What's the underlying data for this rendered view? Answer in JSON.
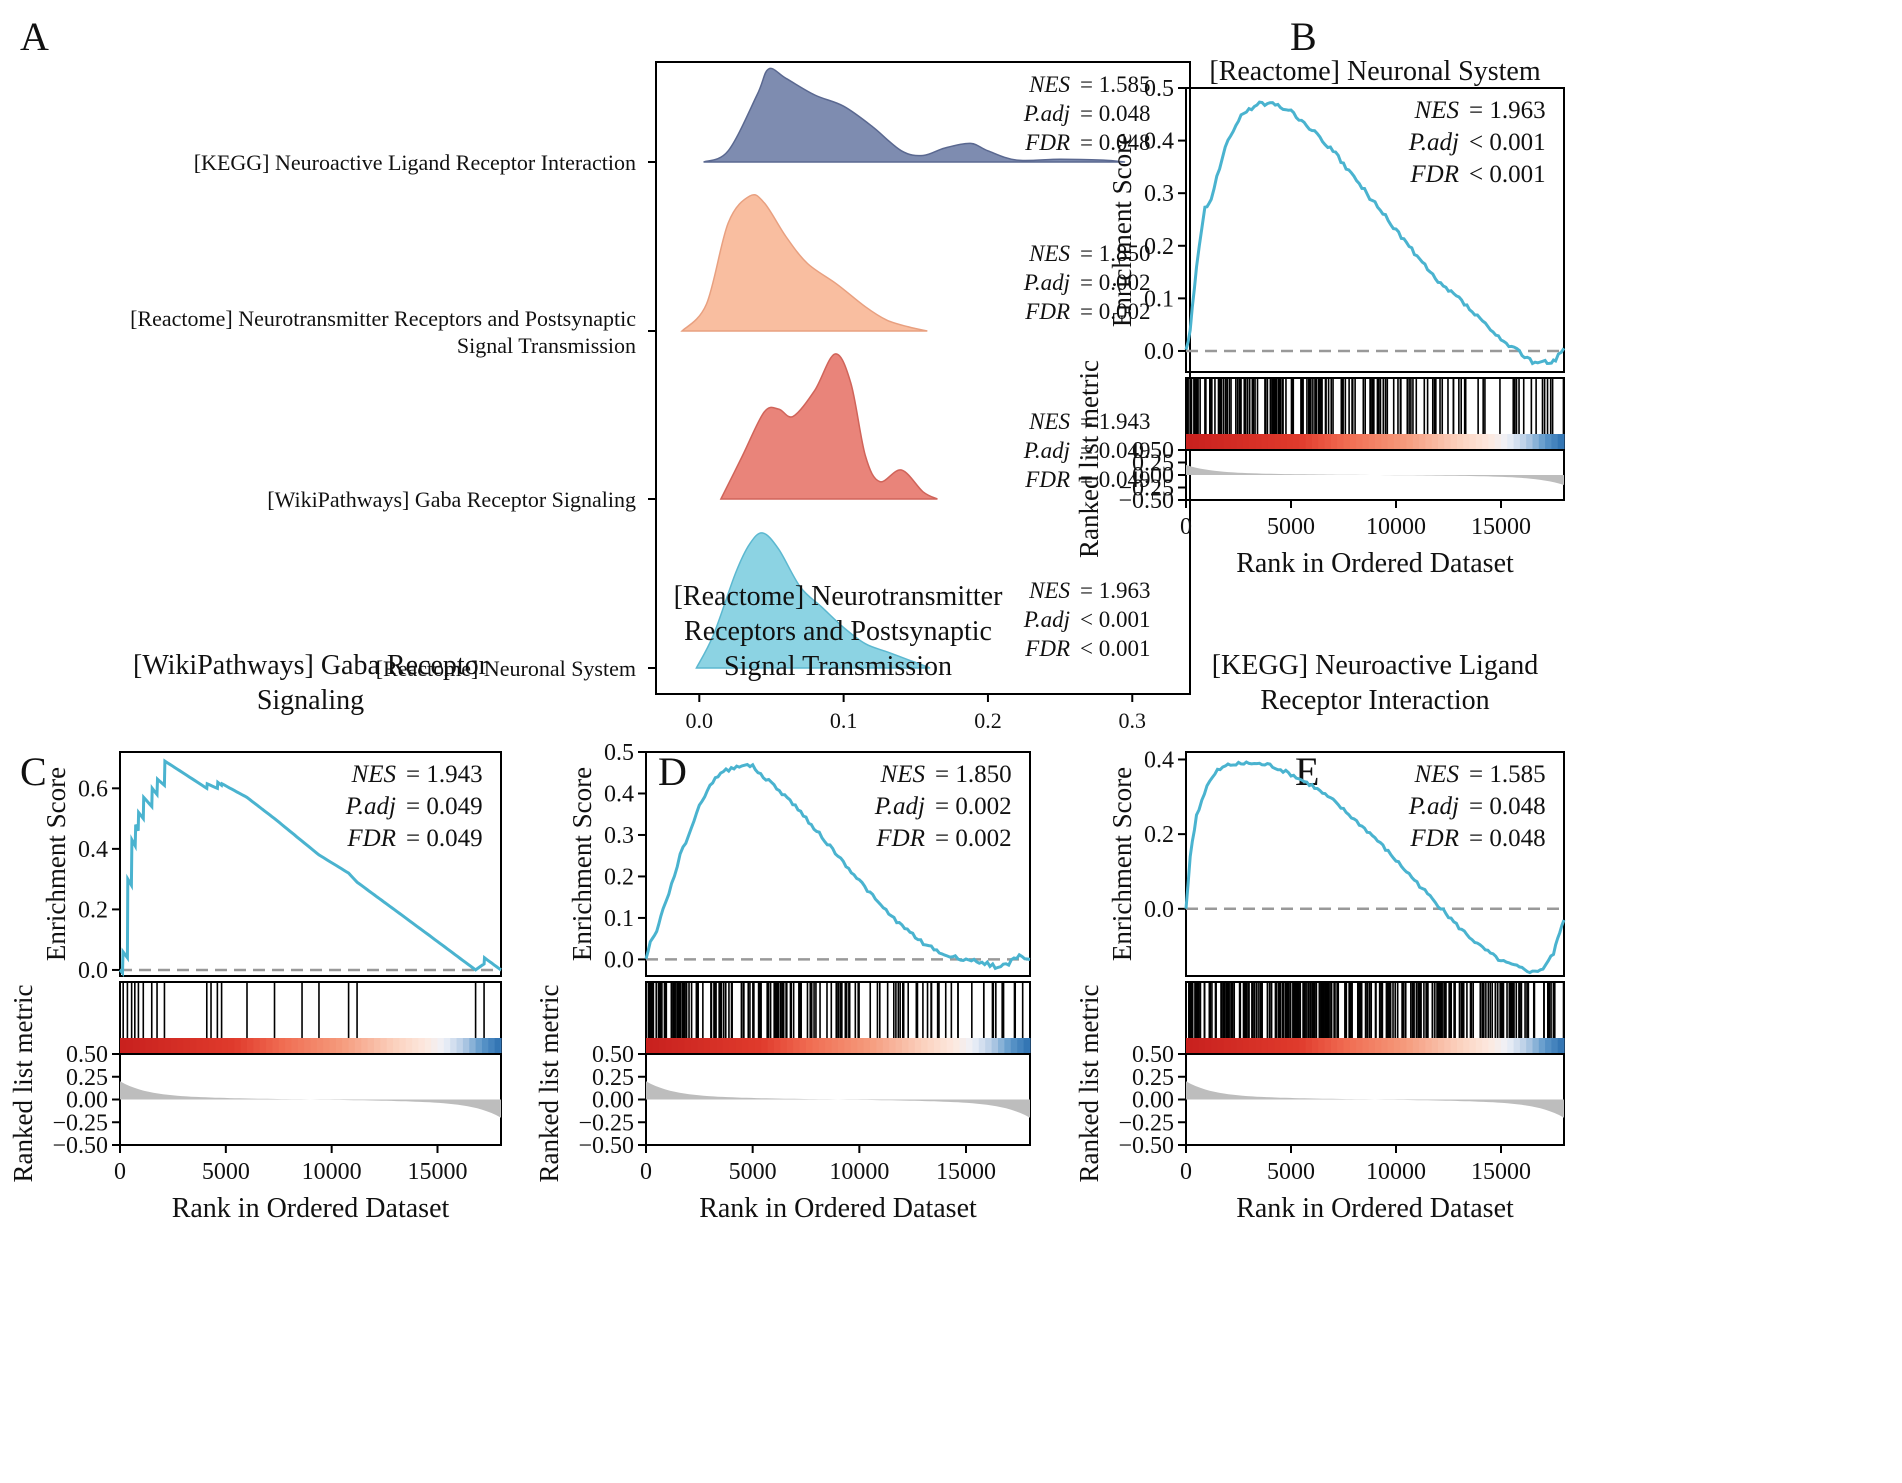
{
  "labels": {
    "A": "A",
    "B": "B",
    "C": "C",
    "D": "D",
    "E": "E"
  },
  "colors": {
    "curve": "#4ab3cf",
    "baseline": "#999999",
    "metric": "#bdbdbd",
    "ridge": [
      "#7e8cb0",
      "#f9bea0",
      "#e9847a",
      "#8cd3e3"
    ],
    "ridge_edge": [
      "#5a6890",
      "#e8a080",
      "#d0645a",
      "#5cb8d0"
    ]
  },
  "chart_data": [
    {
      "panel": "A",
      "type": "ridgeline",
      "x_ticks": [
        "0.0",
        "0.1",
        "0.2",
        "0.3"
      ],
      "xlim": [
        -0.03,
        0.34
      ],
      "x_grid": [
        0,
        0.1,
        0.2,
        0.3,
        0.35,
        0.4,
        0.45,
        0.5,
        0.55,
        0.6,
        0.65,
        0.7,
        0.75,
        0.8,
        0.85,
        0.9,
        0.95,
        1
      ],
      "ridges": [
        {
          "name": "[KEGG] Neuroactive Ligand Receptor Interaction",
          "label_lines": [
            "[KEGG] Neuroactive Ligand Receptor Interaction"
          ],
          "x": [
            0.003,
            0.02,
            0.04,
            0.048,
            0.06,
            0.08,
            0.1,
            0.12,
            0.14,
            0.155,
            0.17,
            0.188,
            0.2,
            0.22,
            0.25,
            0.28,
            0.295
          ],
          "density": [
            0,
            0.12,
            0.72,
            1.0,
            0.9,
            0.72,
            0.6,
            0.38,
            0.12,
            0.07,
            0.15,
            0.2,
            0.12,
            0.02,
            0.03,
            0.02,
            0.0
          ],
          "stats": [
            {
              "key": "NES",
              "val": "= 1.585"
            },
            {
              "key": "P.adj",
              "val": "= 0.048"
            },
            {
              "key": "FDR",
              "val": "= 0.048"
            }
          ]
        },
        {
          "name": "[Reactome] Neurotransmitter Receptors and Postsynaptic Signal Transmission",
          "label_lines": [
            "[Reactome] Neurotransmitter Receptors and Postsynaptic",
            "Signal Transmission"
          ],
          "x": [
            -0.012,
            0.005,
            0.02,
            0.035,
            0.045,
            0.06,
            0.075,
            0.095,
            0.115,
            0.13,
            0.145,
            0.158
          ],
          "density": [
            0,
            0.2,
            0.8,
            1.0,
            0.95,
            0.7,
            0.5,
            0.35,
            0.18,
            0.08,
            0.03,
            0.0
          ],
          "stats": [
            {
              "key": "NES",
              "val": "= 1.850"
            },
            {
              "key": "P.adj",
              "val": "= 0.002"
            },
            {
              "key": "FDR",
              "val": "= 0.002"
            }
          ]
        },
        {
          "name": "[WikiPathways] Gaba Receptor Signaling",
          "label_lines": [
            "[WikiPathways] Gaba Receptor Signaling"
          ],
          "x": [
            0.015,
            0.03,
            0.045,
            0.055,
            0.065,
            0.08,
            0.094,
            0.105,
            0.115,
            0.125,
            0.14,
            0.155,
            0.165
          ],
          "density": [
            0,
            0.3,
            0.6,
            0.62,
            0.57,
            0.75,
            1.0,
            0.8,
            0.3,
            0.12,
            0.2,
            0.05,
            0.0
          ],
          "stats": [
            {
              "key": "NES",
              "val": "= 1.943"
            },
            {
              "key": "P.adj",
              "val": "= 0.049"
            },
            {
              "key": "FDR",
              "val": "= 0.049"
            }
          ]
        },
        {
          "name": "[Reactome] Neuronal System",
          "label_lines": [
            "[Reactome] Neuronal System"
          ],
          "x": [
            -0.002,
            0.01,
            0.025,
            0.035,
            0.044,
            0.055,
            0.07,
            0.085,
            0.1,
            0.115,
            0.13,
            0.145,
            0.16
          ],
          "density": [
            0,
            0.25,
            0.7,
            0.92,
            1.0,
            0.88,
            0.6,
            0.45,
            0.3,
            0.18,
            0.12,
            0.06,
            0.0
          ],
          "stats": [
            {
              "key": "NES",
              "val": "= 1.963"
            },
            {
              "key": "P.adj",
              "val": "< 0.001"
            },
            {
              "key": "FDR",
              "val": "< 0.001"
            }
          ]
        }
      ]
    },
    {
      "panel": "B",
      "type": "gsea",
      "title_lines": [
        "[Reactome] Neuronal System"
      ],
      "ylim": [
        -0.04,
        0.5
      ],
      "y_ticks": [
        0.0,
        0.1,
        0.2,
        0.3,
        0.4,
        0.5
      ],
      "y_tick_labels": [
        "0.0",
        "0.1",
        "0.2",
        "0.3",
        "0.4",
        "0.5"
      ],
      "stats": [
        {
          "key": "NES",
          "val": "= 1.963"
        },
        {
          "key": "P.adj",
          "val": "< 0.001"
        },
        {
          "key": "FDR",
          "val": "< 0.001"
        }
      ],
      "es_x": [
        0,
        200,
        500,
        900,
        1200,
        1600,
        2000,
        2500,
        3000,
        3500,
        4000,
        4500,
        5000,
        6000,
        7000,
        8000,
        9000,
        10000,
        11000,
        12000,
        13000,
        14000,
        15000,
        16000,
        16500,
        17000,
        17300,
        17600,
        18000
      ],
      "es_y": [
        0,
        0.04,
        0.16,
        0.27,
        0.29,
        0.35,
        0.4,
        0.44,
        0.46,
        0.47,
        0.47,
        0.465,
        0.455,
        0.42,
        0.38,
        0.33,
        0.28,
        0.23,
        0.18,
        0.13,
        0.1,
        0.06,
        0.02,
        -0.005,
        -0.02,
        -0.02,
        -0.025,
        -0.015,
        0.005
      ],
      "hits_seed": 7,
      "hits_n": 170,
      "hits_decay": 7e-05
    },
    {
      "panel": "C",
      "type": "gsea",
      "title_lines": [
        "[WikiPathways] Gaba Receptor",
        "Signaling"
      ],
      "ylim": [
        -0.02,
        0.72
      ],
      "y_ticks": [
        0.0,
        0.2,
        0.4,
        0.6
      ],
      "y_tick_labels": [
        "0.0",
        "0.2",
        "0.4",
        "0.6"
      ],
      "stats": [
        {
          "key": "NES",
          "val": "= 1.943"
        },
        {
          "key": "P.adj",
          "val": "= 0.049"
        },
        {
          "key": "FDR",
          "val": "= 0.049"
        }
      ],
      "es_x": [
        0,
        120,
        140,
        350,
        370,
        540,
        560,
        720,
        740,
        860,
        880,
        1100,
        1120,
        1500,
        1520,
        1750,
        1770,
        2100,
        2120,
        4100,
        4120,
        4600,
        4620,
        4800,
        4820,
        6000,
        7300,
        9400,
        10800,
        11200,
        14500,
        16800,
        17200,
        17220,
        18000
      ],
      "es_y": [
        0,
        -0.01,
        0.06,
        0.04,
        0.3,
        0.28,
        0.43,
        0.41,
        0.48,
        0.46,
        0.52,
        0.5,
        0.57,
        0.54,
        0.6,
        0.58,
        0.63,
        0.61,
        0.69,
        0.6,
        0.615,
        0.6,
        0.62,
        0.61,
        0.615,
        0.57,
        0.5,
        0.38,
        0.32,
        0.29,
        0.12,
        0.0,
        0.02,
        0.04,
        0.0
      ],
      "hits": [
        150,
        350,
        550,
        700,
        870,
        1100,
        1500,
        1750,
        2100,
        4100,
        4300,
        4600,
        4800,
        6000,
        7300,
        8600,
        9400,
        10800,
        11200,
        16800,
        17200
      ],
      "band_boundaries": [
        0.42,
        0.72,
        0.9
      ]
    },
    {
      "panel": "D",
      "type": "gsea",
      "title_lines": [
        "[Reactome] Neurotransmitter",
        "Receptors and Postsynaptic",
        "Signal Transmission"
      ],
      "ylim": [
        -0.04,
        0.5
      ],
      "y_ticks": [
        0.0,
        0.1,
        0.2,
        0.3,
        0.4,
        0.5
      ],
      "y_tick_labels": [
        "0.0",
        "0.1",
        "0.2",
        "0.3",
        "0.4",
        "0.5"
      ],
      "stats": [
        {
          "key": "NES",
          "val": "= 1.850"
        },
        {
          "key": "P.adj",
          "val": "= 0.002"
        },
        {
          "key": "FDR",
          "val": "= 0.002"
        }
      ],
      "es_x": [
        0,
        200,
        500,
        800,
        1200,
        1600,
        2000,
        2500,
        3000,
        3500,
        4000,
        4500,
        5000,
        5500,
        6000,
        7000,
        8000,
        9000,
        10000,
        11000,
        12000,
        13000,
        14000,
        15000,
        16000,
        16500,
        17000,
        17500,
        18000
      ],
      "es_y": [
        0,
        0.04,
        0.07,
        0.12,
        0.18,
        0.25,
        0.3,
        0.37,
        0.42,
        0.45,
        0.46,
        0.47,
        0.465,
        0.44,
        0.42,
        0.37,
        0.31,
        0.25,
        0.19,
        0.13,
        0.08,
        0.04,
        0.01,
        0.0,
        -0.01,
        -0.02,
        -0.01,
        0.01,
        0.0
      ],
      "hits_seed": 11,
      "hits_n": 150,
      "hits_decay": 9e-05
    },
    {
      "panel": "E",
      "type": "gsea",
      "title_lines": [
        "[KEGG] Neuroactive Ligand",
        "Receptor Interaction"
      ],
      "ylim": [
        -0.18,
        0.42
      ],
      "y_ticks": [
        0.0,
        0.2,
        0.4
      ],
      "y_tick_labels": [
        "0.0",
        "0.2",
        "0.4"
      ],
      "stats": [
        {
          "key": "NES",
          "val": "= 1.585"
        },
        {
          "key": "P.adj",
          "val": "= 0.048"
        },
        {
          "key": "FDR",
          "val": "= 0.048"
        }
      ],
      "es_x": [
        0,
        200,
        500,
        1000,
        1500,
        2000,
        3000,
        4000,
        5000,
        6000,
        7000,
        8000,
        9000,
        10000,
        11000,
        12000,
        13000,
        14000,
        15000,
        16000,
        16500,
        17000,
        17500,
        17800,
        18000
      ],
      "es_y": [
        0,
        0.14,
        0.25,
        0.33,
        0.37,
        0.385,
        0.39,
        0.385,
        0.36,
        0.33,
        0.29,
        0.24,
        0.19,
        0.13,
        0.07,
        0.01,
        -0.05,
        -0.1,
        -0.14,
        -0.16,
        -0.17,
        -0.16,
        -0.12,
        -0.06,
        -0.03
      ],
      "hits_seed": 23,
      "hits_n": 270,
      "hits_decay": 4e-05
    }
  ],
  "shared": {
    "y2_label": "Enrichment Score",
    "y3_label": "Ranked list metric",
    "x_label": "Rank in Ordered Dataset",
    "x_ticks": [
      0,
      5000,
      10000,
      15000
    ],
    "x_tick_labels": [
      "0",
      "5000",
      "10000",
      "15000"
    ],
    "x_max": 18000,
    "metric_ticks": [
      0.5,
      0.25,
      0.0,
      -0.25,
      -0.5
    ],
    "metric_tick_labels": [
      "0.50",
      "0.25",
      "0.00",
      "−0.25",
      "−0.50"
    ]
  }
}
